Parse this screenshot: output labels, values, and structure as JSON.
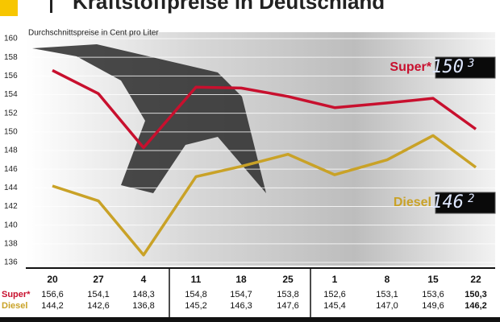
{
  "chart_data": {
    "type": "line",
    "title": "Kraftstoffpreise in Deutschland",
    "y_axis_label": "Durchschnittspreise in Cent pro Liter",
    "categories": [
      "20",
      "27",
      "4",
      "11",
      "18",
      "25",
      "1",
      "8",
      "15",
      "22"
    ],
    "series": [
      {
        "name": "Super*",
        "color": "#c8102e",
        "values": [
          156.6,
          154.1,
          148.3,
          154.8,
          154.7,
          153.8,
          152.6,
          153.1,
          153.6,
          150.3
        ],
        "value_labels": [
          "156,6",
          "154,1",
          "148,3",
          "154,8",
          "154,7",
          "153,8",
          "152,6",
          "153,1",
          "153,6",
          "150,3"
        ],
        "display_main": "150",
        "display_sup": "3"
      },
      {
        "name": "Diesel",
        "color": "#c9a227",
        "values": [
          144.2,
          142.6,
          136.8,
          145.2,
          146.3,
          147.6,
          145.4,
          147.0,
          149.6,
          146.2
        ],
        "value_labels": [
          "144,2",
          "142,6",
          "136,8",
          "145,2",
          "146,3",
          "147,6",
          "145,4",
          "147,0",
          "149,6",
          "146,2"
        ],
        "display_main": "146",
        "display_sup": "2"
      }
    ],
    "ylim": [
      136,
      160
    ],
    "yticks": [
      136,
      138,
      140,
      142,
      144,
      146,
      148,
      150,
      152,
      154,
      156,
      158,
      160
    ],
    "grid": true
  }
}
